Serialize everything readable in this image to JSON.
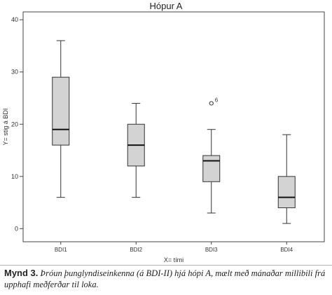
{
  "chart_data": {
    "type": "boxplot",
    "title": "Hópur A",
    "xlabel": "X= tími",
    "ylabel": "Y= stig á BDI",
    "ylim": [
      -2.5,
      41.5
    ],
    "yticks": [
      0,
      10,
      20,
      30,
      40
    ],
    "grid": false,
    "box_color": "#d3d3d3",
    "categories": [
      "BDI1",
      "BDI2",
      "BDI3",
      "BDI4"
    ],
    "boxes": [
      {
        "category": "BDI1",
        "min": 6,
        "q1": 16,
        "median": 19,
        "q3": 29,
        "max": 36,
        "outliers": []
      },
      {
        "category": "BDI2",
        "min": 6,
        "q1": 12,
        "median": 16,
        "q3": 20,
        "max": 24,
        "outliers": []
      },
      {
        "category": "BDI3",
        "min": 3,
        "q1": 9,
        "median": 13,
        "q3": 14,
        "max": 19,
        "outliers": [
          {
            "value": 24,
            "label": "6"
          }
        ]
      },
      {
        "category": "BDI4",
        "min": 1,
        "q1": 4,
        "median": 6,
        "q3": 10,
        "max": 18,
        "outliers": []
      }
    ]
  },
  "caption": {
    "label": "Mynd 3.",
    "text": "Þróun þunglyndiseinkenna (á BDI-II) hjá hópi A, mælt með mánaðar millibili frá upphafi meðferðar til loka."
  }
}
